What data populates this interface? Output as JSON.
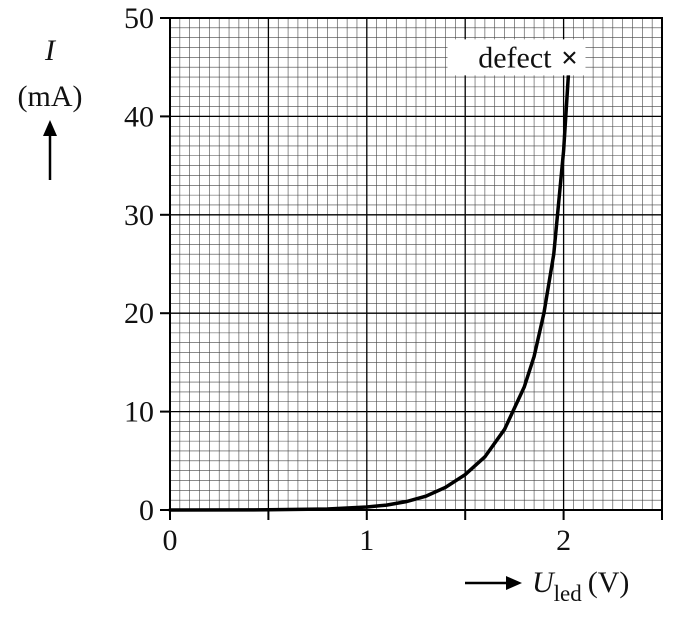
{
  "chart_data": {
    "type": "line",
    "x_axis": {
      "symbol": "U",
      "subscript": "led",
      "unit": "(V)",
      "range": [
        0,
        2.5
      ],
      "ticks": [
        0,
        0.5,
        1,
        1.5,
        2,
        2.5
      ],
      "tick_labels": [
        {
          "value": 0,
          "label": "0"
        },
        {
          "value": 1,
          "label": "1"
        },
        {
          "value": 2,
          "label": "2"
        }
      ],
      "minor_step": 0.05
    },
    "y_axis": {
      "symbol": "I",
      "unit": "(mA)",
      "range": [
        0,
        50
      ],
      "ticks": [
        0,
        10,
        20,
        30,
        40,
        50
      ],
      "tick_labels": [
        {
          "value": 0,
          "label": "0"
        },
        {
          "value": 10,
          "label": "10"
        },
        {
          "value": 20,
          "label": "20"
        },
        {
          "value": 30,
          "label": "30"
        },
        {
          "value": 40,
          "label": "40"
        },
        {
          "value": 50,
          "label": "50"
        }
      ],
      "minor_step": 1
    },
    "grid": true,
    "series": [
      {
        "x": [
          0,
          0.5,
          0.8,
          1.0,
          1.1,
          1.2,
          1.3,
          1.4,
          1.5,
          1.6,
          1.7,
          1.8,
          1.85,
          1.9,
          1.95,
          2.0,
          2.03
        ],
        "y": [
          0,
          0.02,
          0.1,
          0.3,
          0.5,
          0.85,
          1.4,
          2.3,
          3.6,
          5.4,
          8.2,
          12.5,
          15.6,
          20.0,
          26.0,
          36.5,
          46.0
        ]
      }
    ],
    "annotations": [
      {
        "text": "defect",
        "marker": "×",
        "x": 2.03,
        "y": 46.0
      }
    ]
  }
}
